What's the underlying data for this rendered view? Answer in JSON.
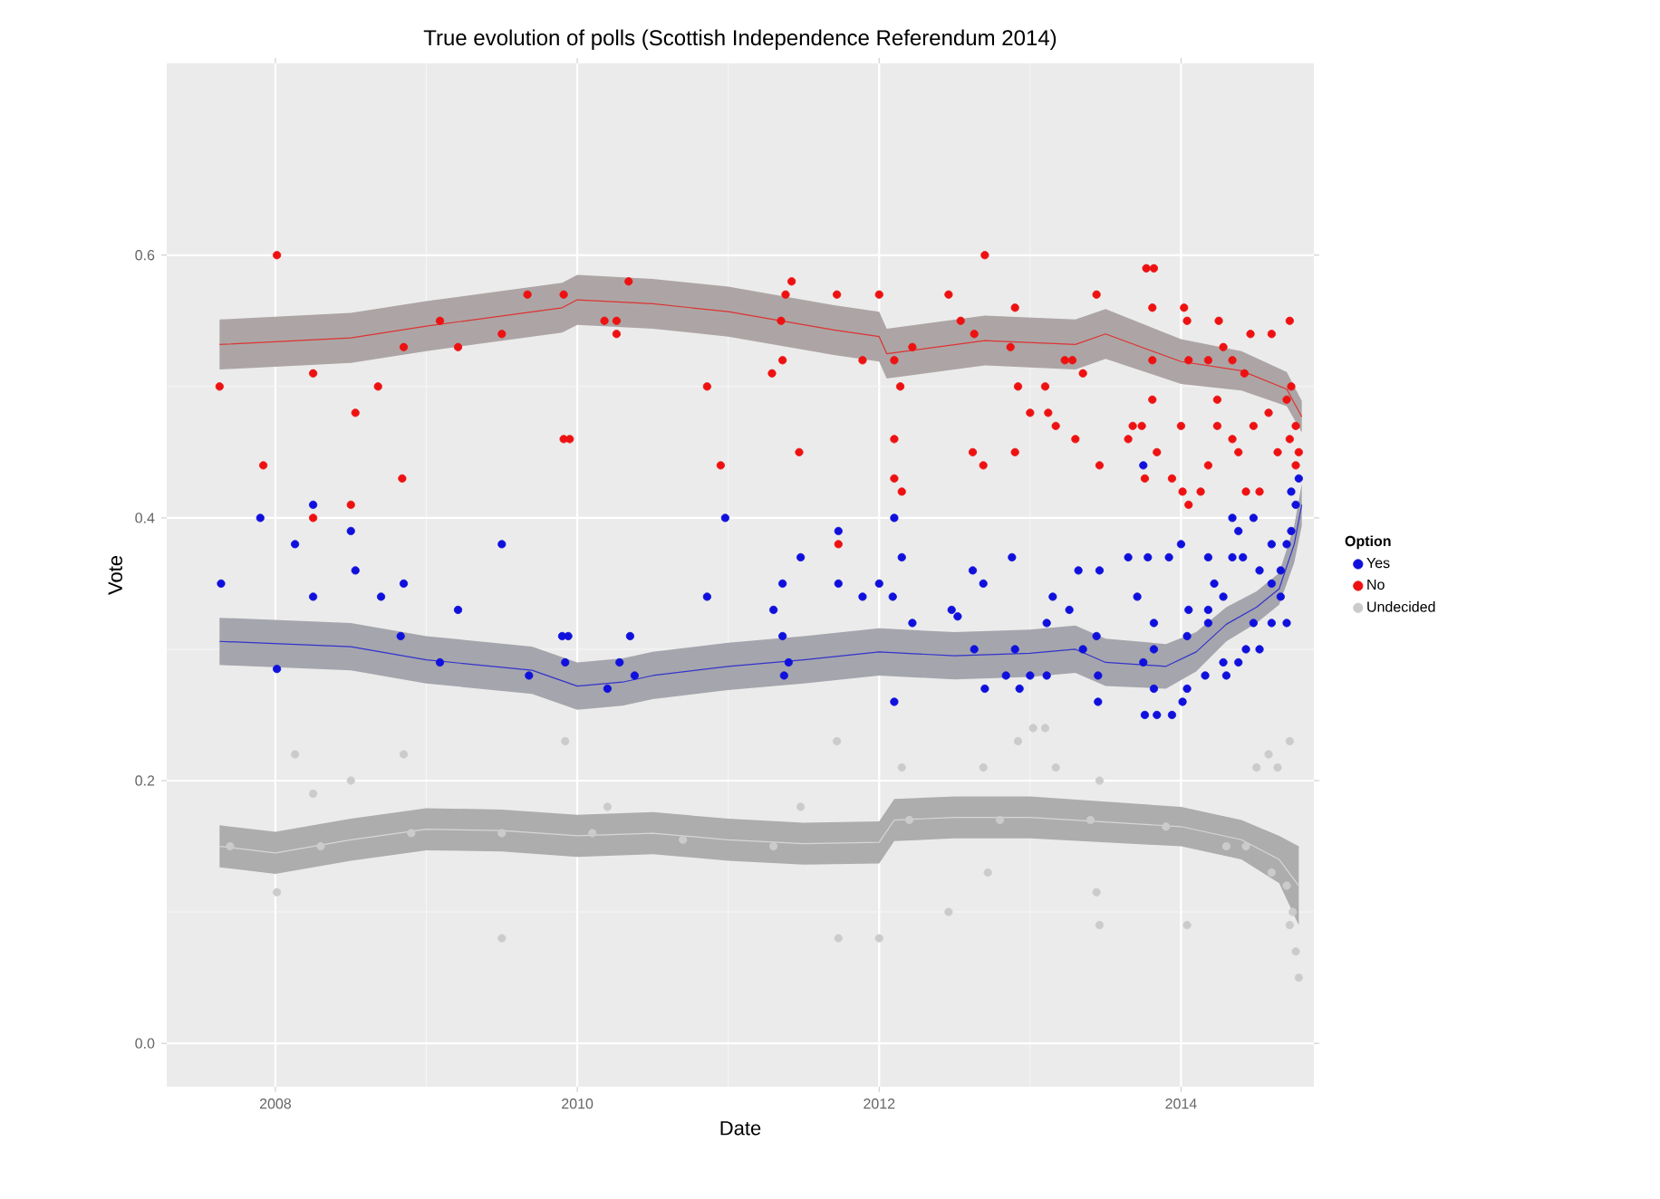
{
  "chart_data": {
    "type": "scatter",
    "title": "True evolution of polls (Scottish Independence Referendum 2014)",
    "xlabel": "Date",
    "ylabel": "Vote",
    "legend_title": "Option",
    "legend": "right",
    "grid": true,
    "marker": "circle",
    "xlim": [
      2007.28,
      2014.88
    ],
    "ylim": [
      -0.033,
      0.746
    ],
    "xticks": [
      2008,
      2010,
      2012,
      2014
    ],
    "yticks": [
      {
        "value": 0,
        "label": "0.0"
      },
      0.2,
      0.4,
      0.6
    ],
    "series": [
      {
        "name": "Yes",
        "color": "#1010dd",
        "x": [
          2007.64,
          2007.9,
          2008.01,
          2008.13,
          2008.25,
          2008.25,
          2008.5,
          2008.53,
          2008.7,
          2008.85,
          2008.83,
          2009.09,
          2009.21,
          2009.5,
          2009.68,
          2009.9,
          2009.94,
          2009.92,
          2010.2,
          2010.28,
          2010.38,
          2010.35,
          2010.86,
          2010.98,
          2011.48,
          2011.36,
          2011.3,
          2011.36,
          2011.4,
          2011.37,
          2011.73,
          2011.73,
          2011.89,
          2012.0,
          2012.09,
          2012.1,
          2012.15,
          2012.22,
          2012.1,
          2012.48,
          2012.52,
          2012.62,
          2012.69,
          2012.63,
          2012.7,
          2012.84,
          2012.9,
          2012.93,
          2013.0,
          2013.11,
          2012.88,
          2013.15,
          2013.26,
          2013.11,
          2013.32,
          2013.46,
          2013.35,
          2013.44,
          2013.45,
          2013.45,
          2013.65,
          2013.78,
          2013.92,
          2014.0,
          2013.71,
          2013.82,
          2013.75,
          2013.82,
          2013.82,
          2013.76,
          2013.84,
          2013.94,
          2014.04,
          2014.01,
          2014.04,
          2014.05,
          2013.75,
          2014.18,
          2014.22,
          2014.28,
          2014.18,
          2014.18,
          2014.16,
          2014.28,
          2014.3,
          2014.38,
          2014.43,
          2014.52,
          2014.48,
          2014.6,
          2014.7,
          2014.34,
          2014.38,
          2014.48,
          2014.34,
          2014.41,
          2014.52,
          2014.6,
          2014.66,
          2014.7,
          2014.73,
          2014.76,
          2014.78,
          2014.73,
          2014.6,
          2014.66
        ],
        "values": [
          0.35,
          0.4,
          0.285,
          0.38,
          0.41,
          0.34,
          0.39,
          0.36,
          0.34,
          0.35,
          0.31,
          0.29,
          0.33,
          0.38,
          0.28,
          0.31,
          0.31,
          0.29,
          0.27,
          0.29,
          0.28,
          0.31,
          0.34,
          0.4,
          0.37,
          0.35,
          0.33,
          0.31,
          0.29,
          0.28,
          0.39,
          0.35,
          0.34,
          0.35,
          0.34,
          0.4,
          0.37,
          0.32,
          0.26,
          0.33,
          0.325,
          0.36,
          0.35,
          0.3,
          0.27,
          0.28,
          0.3,
          0.27,
          0.28,
          0.28,
          0.37,
          0.34,
          0.33,
          0.32,
          0.36,
          0.36,
          0.3,
          0.31,
          0.28,
          0.26,
          0.37,
          0.37,
          0.37,
          0.38,
          0.34,
          0.32,
          0.29,
          0.3,
          0.27,
          0.25,
          0.25,
          0.25,
          0.27,
          0.26,
          0.31,
          0.33,
          0.44,
          0.37,
          0.35,
          0.34,
          0.33,
          0.32,
          0.28,
          0.29,
          0.28,
          0.29,
          0.3,
          0.3,
          0.32,
          0.32,
          0.32,
          0.4,
          0.39,
          0.4,
          0.37,
          0.37,
          0.36,
          0.35,
          0.36,
          0.38,
          0.39,
          0.41,
          0.43,
          0.42,
          0.38,
          0.34
        ]
      },
      {
        "name": "No",
        "color": "#ee1111",
        "x": [
          2007.63,
          2007.92,
          2008.01,
          2008.25,
          2008.25,
          2008.53,
          2008.5,
          2008.68,
          2008.84,
          2008.85,
          2009.09,
          2009.21,
          2009.5,
          2009.67,
          2009.91,
          2009.91,
          2009.95,
          2010.18,
          2010.26,
          2010.34,
          2010.26,
          2010.86,
          2010.95,
          2011.42,
          2011.38,
          2011.35,
          2011.72,
          2012.0,
          2011.36,
          2011.29,
          2011.47,
          2011.89,
          2012.1,
          2012.22,
          2012.14,
          2012.1,
          2012.1,
          2012.15,
          2011.73,
          2012.46,
          2012.7,
          2012.9,
          2012.54,
          2012.63,
          2012.87,
          2012.62,
          2012.69,
          2012.9,
          2012.92,
          2013.1,
          2013.0,
          2013.12,
          2013.17,
          2013.23,
          2013.28,
          2013.35,
          2013.3,
          2013.46,
          2013.44,
          2013.77,
          2013.82,
          2013.81,
          2013.81,
          2013.81,
          2013.74,
          2013.68,
          2013.65,
          2013.84,
          2013.76,
          2013.94,
          2014.01,
          2014.13,
          2014.05,
          2014.02,
          2014.04,
          2014.05,
          2014.0,
          2014.18,
          2014.25,
          2014.28,
          2014.34,
          2014.42,
          2014.46,
          2014.6,
          2014.72,
          2014.24,
          2014.24,
          2014.34,
          2014.38,
          2014.48,
          2014.52,
          2014.43,
          2014.18,
          2014.58,
          2014.64,
          2014.7,
          2014.72,
          2014.76,
          2014.73,
          2014.78,
          2014.76
        ],
        "values": [
          0.5,
          0.44,
          0.6,
          0.4,
          0.51,
          0.48,
          0.41,
          0.5,
          0.43,
          0.53,
          0.55,
          0.53,
          0.54,
          0.57,
          0.57,
          0.46,
          0.46,
          0.55,
          0.55,
          0.58,
          0.54,
          0.5,
          0.44,
          0.58,
          0.57,
          0.55,
          0.57,
          0.57,
          0.52,
          0.51,
          0.45,
          0.52,
          0.52,
          0.53,
          0.5,
          0.46,
          0.43,
          0.42,
          0.38,
          0.57,
          0.6,
          0.56,
          0.55,
          0.54,
          0.53,
          0.45,
          0.44,
          0.45,
          0.5,
          0.5,
          0.48,
          0.48,
          0.47,
          0.52,
          0.52,
          0.51,
          0.46,
          0.44,
          0.57,
          0.59,
          0.59,
          0.56,
          0.52,
          0.49,
          0.47,
          0.47,
          0.46,
          0.45,
          0.43,
          0.43,
          0.42,
          0.42,
          0.41,
          0.56,
          0.55,
          0.52,
          0.47,
          0.52,
          0.55,
          0.53,
          0.52,
          0.51,
          0.54,
          0.54,
          0.55,
          0.49,
          0.47,
          0.46,
          0.45,
          0.47,
          0.42,
          0.42,
          0.44,
          0.48,
          0.45,
          0.49,
          0.46,
          0.47,
          0.5,
          0.45,
          0.44
        ]
      },
      {
        "name": "Undecided",
        "color": "#cbcbcb",
        "x": [
          2007.7,
          2008.01,
          2008.13,
          2008.25,
          2008.3,
          2008.5,
          2008.85,
          2008.9,
          2009.5,
          2009.5,
          2009.92,
          2010.1,
          2010.2,
          2010.7,
          2011.3,
          2011.48,
          2011.72,
          2011.73,
          2012.0,
          2012.15,
          2012.2,
          2012.46,
          2012.69,
          2012.72,
          2012.8,
          2012.92,
          2013.02,
          2013.1,
          2013.17,
          2013.4,
          2013.44,
          2013.46,
          2013.46,
          2013.9,
          2014.04,
          2014.3,
          2014.43,
          2014.5,
          2014.58,
          2014.6,
          2014.64,
          2014.7,
          2014.72,
          2014.72,
          2014.74,
          2014.76,
          2014.78
        ],
        "values": [
          0.15,
          0.115,
          0.22,
          0.19,
          0.15,
          0.2,
          0.22,
          0.16,
          0.16,
          0.08,
          0.23,
          0.16,
          0.18,
          0.155,
          0.15,
          0.18,
          0.23,
          0.08,
          0.08,
          0.21,
          0.17,
          0.1,
          0.21,
          0.13,
          0.17,
          0.23,
          0.24,
          0.24,
          0.21,
          0.17,
          0.115,
          0.2,
          0.09,
          0.165,
          0.09,
          0.15,
          0.15,
          0.21,
          0.22,
          0.13,
          0.21,
          0.12,
          0.23,
          0.09,
          0.1,
          0.07,
          0.05
        ]
      },
      {
        "type": "line",
        "marker": "none",
        "color": "#3333cc",
        "x": [
          2007.63,
          2008.5,
          2009.0,
          2009.7,
          2010.0,
          2010.3,
          2010.5,
          2011.0,
          2011.5,
          2012.0,
          2012.5,
          2013.0,
          2013.3,
          2013.5,
          2013.9,
          2014.1,
          2014.3,
          2014.5,
          2014.65,
          2014.75,
          2014.8
        ],
        "values": [
          0.306,
          0.302,
          0.292,
          0.284,
          0.272,
          0.275,
          0.28,
          0.287,
          0.292,
          0.298,
          0.295,
          0.297,
          0.3,
          0.29,
          0.287,
          0.298,
          0.319,
          0.332,
          0.346,
          0.38,
          0.41
        ],
        "lower": [
          0.288,
          0.284,
          0.274,
          0.266,
          0.254,
          0.257,
          0.262,
          0.269,
          0.274,
          0.28,
          0.277,
          0.279,
          0.282,
          0.272,
          0.27,
          0.283,
          0.306,
          0.32,
          0.334,
          0.366,
          0.394
        ],
        "upper": [
          0.324,
          0.32,
          0.31,
          0.302,
          0.29,
          0.293,
          0.298,
          0.305,
          0.31,
          0.316,
          0.313,
          0.315,
          0.318,
          0.308,
          0.304,
          0.313,
          0.332,
          0.344,
          0.358,
          0.394,
          0.426
        ]
      },
      {
        "type": "line",
        "marker": "none",
        "color": "#dd3333",
        "x": [
          2007.63,
          2008.5,
          2009.0,
          2009.9,
          2010.0,
          2010.5,
          2011.0,
          2011.7,
          2012.0,
          2012.05,
          2012.7,
          2013.3,
          2013.5,
          2014.0,
          2014.4,
          2014.7,
          2014.8
        ],
        "values": [
          0.532,
          0.537,
          0.546,
          0.56,
          0.566,
          0.563,
          0.557,
          0.543,
          0.538,
          0.525,
          0.535,
          0.532,
          0.54,
          0.519,
          0.512,
          0.498,
          0.477
        ],
        "lower": [
          0.513,
          0.518,
          0.527,
          0.541,
          0.547,
          0.544,
          0.538,
          0.524,
          0.519,
          0.506,
          0.516,
          0.513,
          0.521,
          0.502,
          0.497,
          0.485,
          0.465
        ],
        "upper": [
          0.551,
          0.556,
          0.565,
          0.579,
          0.585,
          0.582,
          0.576,
          0.562,
          0.557,
          0.544,
          0.554,
          0.551,
          0.559,
          0.536,
          0.527,
          0.511,
          0.489
        ]
      },
      {
        "type": "line",
        "marker": "none",
        "color": "#d6d6d6",
        "x": [
          2007.63,
          2008.0,
          2008.5,
          2009.0,
          2009.5,
          2010.0,
          2010.5,
          2011.0,
          2011.5,
          2012.0,
          2012.1,
          2012.5,
          2013.0,
          2014.0,
          2014.4,
          2014.65,
          2014.78
        ],
        "values": [
          0.15,
          0.145,
          0.155,
          0.163,
          0.162,
          0.158,
          0.16,
          0.155,
          0.152,
          0.153,
          0.17,
          0.172,
          0.172,
          0.165,
          0.155,
          0.14,
          0.12
        ],
        "lower": [
          0.134,
          0.129,
          0.139,
          0.147,
          0.146,
          0.142,
          0.144,
          0.139,
          0.136,
          0.137,
          0.154,
          0.156,
          0.156,
          0.15,
          0.14,
          0.122,
          0.09
        ],
        "upper": [
          0.166,
          0.161,
          0.171,
          0.179,
          0.178,
          0.174,
          0.176,
          0.171,
          0.168,
          0.169,
          0.186,
          0.188,
          0.188,
          0.18,
          0.17,
          0.158,
          0.15
        ]
      }
    ]
  }
}
